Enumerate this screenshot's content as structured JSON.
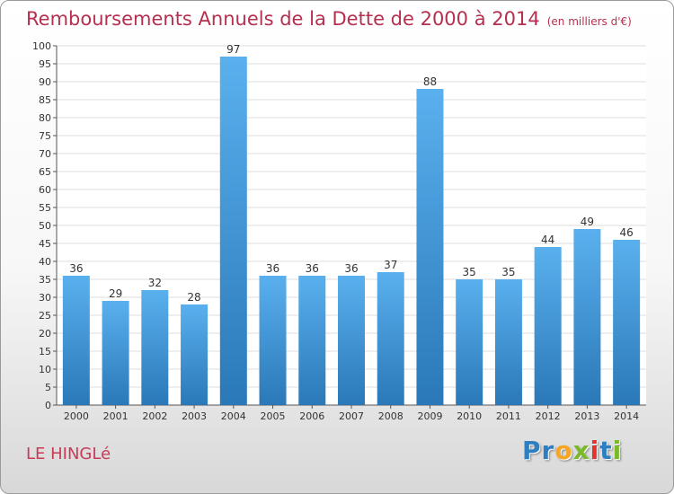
{
  "header": {
    "title": "Remboursements Annuels de la Dette de 2000 à 2014",
    "unit": "(en milliers d'€)"
  },
  "footer": {
    "commune": "LE HINGLé",
    "logo_letters": [
      "P",
      "r",
      "o",
      "x",
      "i",
      "t",
      "i"
    ],
    "logo_colors": [
      "#2d7fc1",
      "#2d7fc1",
      "#f5a623",
      "#7ab929",
      "#e4332e",
      "#2d7fc1",
      "#7ab929"
    ]
  },
  "chart_data": {
    "type": "bar",
    "categories": [
      "2000",
      "2001",
      "2002",
      "2003",
      "2004",
      "2005",
      "2006",
      "2007",
      "2008",
      "2009",
      "2010",
      "2011",
      "2012",
      "2013",
      "2014"
    ],
    "values": [
      36,
      29,
      32,
      28,
      97,
      36,
      36,
      36,
      37,
      88,
      35,
      35,
      44,
      49,
      46
    ],
    "data_labels": [
      "36",
      "29",
      "32",
      "28",
      "97",
      "36",
      "36",
      "36",
      "37",
      "88",
      "35",
      "35",
      "44",
      "49",
      "46"
    ],
    "title": "Remboursements Annuels de la Dette de 2000 à 2014",
    "xlabel": "",
    "ylabel": "",
    "ylim": [
      0,
      100
    ],
    "y_ticks": [
      "0",
      "5",
      "10",
      "15",
      "20",
      "25",
      "30",
      "35",
      "40",
      "45",
      "50",
      "55",
      "60",
      "65",
      "70",
      "75",
      "80",
      "85",
      "90",
      "95",
      "100"
    ],
    "grid": true,
    "bar_color_top": "#5ab0ee",
    "bar_color_bottom": "#2a78b8"
  }
}
